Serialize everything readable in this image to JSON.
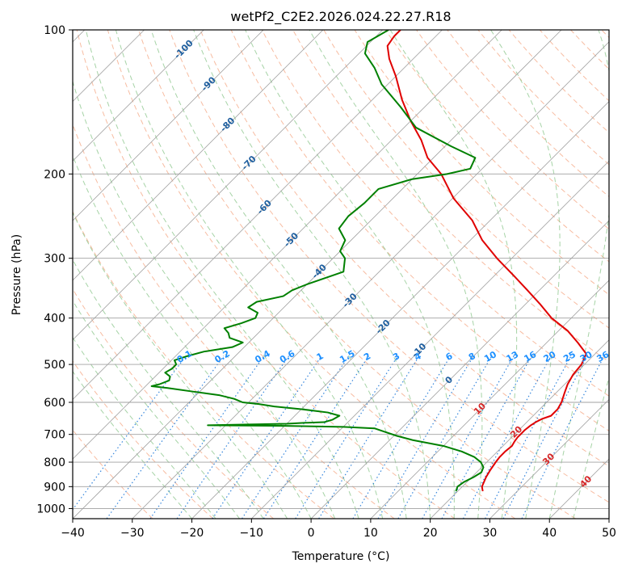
{
  "chart_data": {
    "type": "skew-t",
    "title": "wetPf2_C2E2.2026.024.22.27.R18",
    "xlabel": "Temperature (°C)",
    "ylabel": "Pressure (hPa)",
    "xlim": [
      -40,
      50
    ],
    "ylim": [
      1050,
      100
    ],
    "y_scale": "log",
    "x_ticks": [
      -40,
      -30,
      -20,
      -10,
      0,
      10,
      20,
      30,
      40,
      50
    ],
    "x_tick_labels": [
      "−40",
      "−30",
      "−20",
      "−10",
      "0",
      "10",
      "20",
      "30",
      "40",
      "50"
    ],
    "y_ticks": [
      100,
      200,
      300,
      400,
      500,
      600,
      700,
      800,
      900,
      1000
    ],
    "y_tick_labels": [
      "100",
      "200",
      "300",
      "400",
      "500",
      "600",
      "700",
      "800",
      "900",
      "1000"
    ],
    "grid": true,
    "colors": {
      "temperature": "#e00000",
      "dewpoint": "#008000",
      "isotherm": "#a0a0a0",
      "dry_adiabat": "#f4a582",
      "moist_adiabat": "#90c890",
      "mixing_ratio": "#1e78d8",
      "isotherm_label": "#1f5f9f",
      "dry_adiabat_label": "#d62728",
      "mixing_ratio_label": "#1e90ff"
    },
    "isotherm_labels": [
      {
        "t": -100,
        "p": 110,
        "text": "-100"
      },
      {
        "t": -90,
        "p": 130,
        "text": "-90"
      },
      {
        "t": -80,
        "p": 158,
        "text": "-80"
      },
      {
        "t": -70,
        "p": 190,
        "text": "-70"
      },
      {
        "t": -60,
        "p": 235,
        "text": "-60"
      },
      {
        "t": -50,
        "p": 275,
        "text": "-50"
      },
      {
        "t": -40,
        "p": 320,
        "text": "-40"
      },
      {
        "t": -30,
        "p": 368,
        "text": "-30"
      },
      {
        "t": -20,
        "p": 418,
        "text": "-20"
      },
      {
        "t": -10,
        "p": 468,
        "text": "-10"
      },
      {
        "t": 0,
        "p": 540,
        "text": "0"
      }
    ],
    "dry_adiabat_labels": [
      {
        "t": 10,
        "p": 620,
        "text": "10"
      },
      {
        "t": 20,
        "p": 693,
        "text": "20"
      },
      {
        "t": 30,
        "p": 790,
        "text": "30"
      },
      {
        "t": 40,
        "p": 880,
        "text": "40"
      }
    ],
    "mixing_ratio_labels": [
      "0.1",
      "0.2",
      "0.4",
      "0.6",
      "1",
      "1.5",
      "2",
      "3",
      "4",
      "6",
      "8",
      "10",
      "13",
      "16",
      "20",
      "25",
      "30",
      "36"
    ],
    "mixing_ratio_values": [
      0.1,
      0.2,
      0.4,
      0.6,
      1,
      1.5,
      2,
      3,
      4,
      6,
      8,
      10,
      13,
      16,
      20,
      25,
      30,
      36
    ],
    "mixing_ratio_label_pressure": 480,
    "series": [
      {
        "name": "",
        "key": "temperature",
        "pressure": [
          920,
          900,
          860,
          830,
          800,
          780,
          760,
          740,
          725,
          710,
          700,
          685,
          670,
          660,
          650,
          640,
          620,
          600,
          575,
          550,
          525,
          500,
          475,
          450,
          425,
          400,
          375,
          350,
          325,
          300,
          275,
          250,
          225,
          200,
          185,
          170,
          155,
          140,
          125,
          115,
          108,
          103,
          100
        ],
        "temperature": [
          24.2,
          23.3,
          22.4,
          21.9,
          21.5,
          21.3,
          21.3,
          21.5,
          21.2,
          21.0,
          21.0,
          21.0,
          21.2,
          21.5,
          22.0,
          23.0,
          23.0,
          22.5,
          21.5,
          20.5,
          19.8,
          19.5,
          18.5,
          15.2,
          11.5,
          6.7,
          2.6,
          -2.0,
          -7.0,
          -12.5,
          -18.0,
          -23.0,
          -29.8,
          -36.0,
          -41.0,
          -45.0,
          -50.0,
          -55.0,
          -60.0,
          -64.0,
          -66.5,
          -67.0,
          -67.0
        ]
      },
      {
        "name": "",
        "key": "dewpoint",
        "pressure": [
          920,
          900,
          880,
          860,
          840,
          820,
          800,
          780,
          760,
          740,
          720,
          705,
          690,
          680,
          675,
          672,
          670,
          668,
          665,
          662,
          660,
          652,
          640,
          630,
          620,
          612,
          605,
          600,
          590,
          580,
          570,
          560,
          555,
          550,
          540,
          530,
          520,
          510,
          500,
          490,
          480,
          470,
          460,
          450,
          440,
          430,
          420,
          410,
          400,
          390,
          380,
          370,
          360,
          350,
          340,
          320,
          300,
          290,
          275,
          260,
          245,
          230,
          215,
          205,
          200,
          195,
          185,
          175,
          160,
          145,
          130,
          120,
          112,
          106,
          100
        ],
        "temperature": [
          19.7,
          19.2,
          19.5,
          20.3,
          20.8,
          20.3,
          19.0,
          17.0,
          14.0,
          10.0,
          4.0,
          0.5,
          -2.5,
          -4.5,
          -10.0,
          -20.0,
          -33.0,
          -28.0,
          -20.0,
          -17.0,
          -14.0,
          -13.0,
          -12.5,
          -15.0,
          -20.0,
          -25.0,
          -28.0,
          -31.0,
          -33.0,
          -36.0,
          -41.0,
          -46.0,
          -49.0,
          -48.0,
          -47.0,
          -47.5,
          -49.0,
          -48.5,
          -48.5,
          -49.5,
          -48.0,
          -46.0,
          -42.0,
          -41.0,
          -44.0,
          -45.0,
          -46.5,
          -44.5,
          -43.0,
          -43.5,
          -46.0,
          -45.5,
          -42.0,
          -41.5,
          -40.0,
          -36.0,
          -38.0,
          -40.0,
          -41.0,
          -44.0,
          -44.5,
          -44.0,
          -44.0,
          -40.0,
          -35.0,
          -32.0,
          -33.0,
          -39.0,
          -48.0,
          -54.0,
          -61.0,
          -65.0,
          -69.0,
          -70.5,
          -69.0
        ]
      }
    ]
  }
}
